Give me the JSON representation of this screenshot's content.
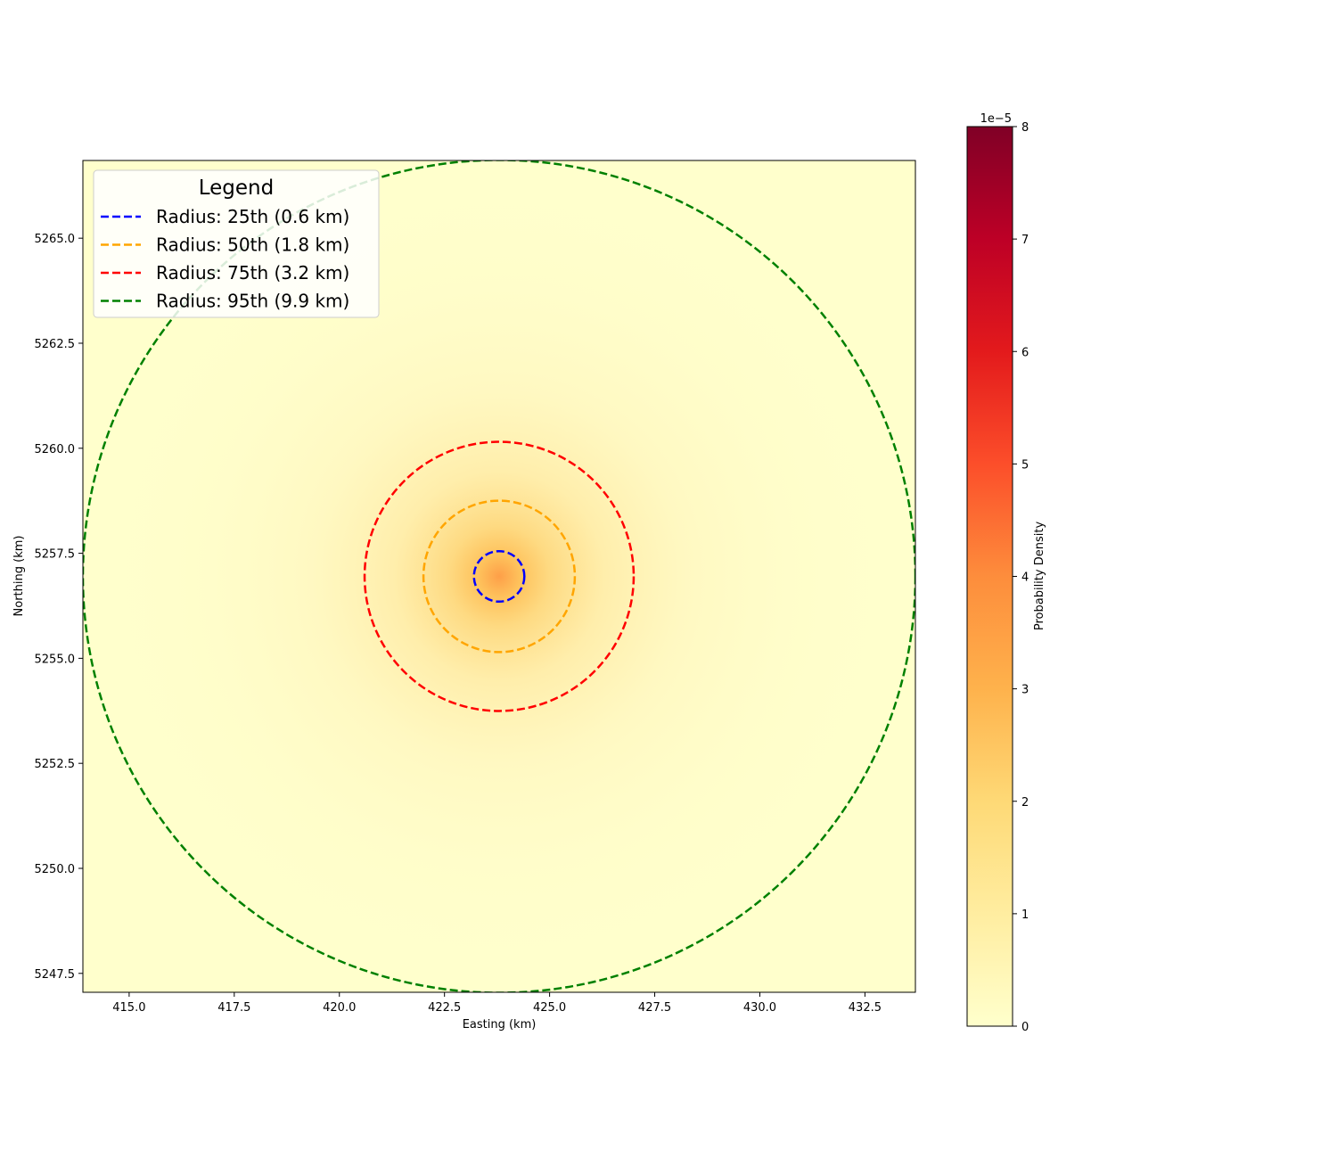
{
  "chart_data": {
    "type": "heatmap",
    "xlabel": "Easting (km)",
    "ylabel": "Northing (km)",
    "xlim": [
      413.9,
      433.7
    ],
    "ylim": [
      5247.05,
      5266.85
    ],
    "x_ticks": [
      415.0,
      417.5,
      420.0,
      422.5,
      425.0,
      427.5,
      430.0,
      432.5
    ],
    "x_tick_labels": [
      "415.0",
      "417.5",
      "420.0",
      "422.5",
      "425.0",
      "427.5",
      "430.0",
      "432.5"
    ],
    "y_ticks": [
      5247.5,
      5250.0,
      5252.5,
      5255.0,
      5257.5,
      5260.0,
      5262.5,
      5265.0
    ],
    "y_tick_labels": [
      "5247.5",
      "5250.0",
      "5252.5",
      "5255.0",
      "5257.5",
      "5260.0",
      "5262.5",
      "5265.0"
    ],
    "center": {
      "x": 423.8,
      "y": 5256.95
    },
    "circles": [
      {
        "label": "Radius: 25th (0.6 km)",
        "radius_km": 0.6,
        "color": "#0000ff"
      },
      {
        "label": "Radius: 50th (1.8 km)",
        "radius_km": 1.8,
        "color": "#ffa500"
      },
      {
        "label": "Radius: 75th (3.2 km)",
        "radius_km": 3.2,
        "color": "#ff0000"
      },
      {
        "label": "Radius: 95th (9.9 km)",
        "radius_km": 9.9,
        "color": "#008000"
      }
    ],
    "legend": {
      "title": "Legend",
      "placement": "top-left"
    },
    "colorbar": {
      "label": "Probability Density",
      "multiplier": "1e−5",
      "min": 0,
      "max": 8,
      "ticks": [
        0,
        1,
        2,
        3,
        4,
        5,
        6,
        7,
        8
      ],
      "tick_labels": [
        "0",
        "1",
        "2",
        "3",
        "4",
        "5",
        "6",
        "7",
        "8"
      ],
      "colormap": "YlOrRd",
      "colors": [
        "#ffffcc",
        "#ffeda0",
        "#fed976",
        "#feb24c",
        "#fd8d3c",
        "#fc4e2a",
        "#e31a1c",
        "#bd0026",
        "#800026"
      ]
    },
    "grid": false
  }
}
